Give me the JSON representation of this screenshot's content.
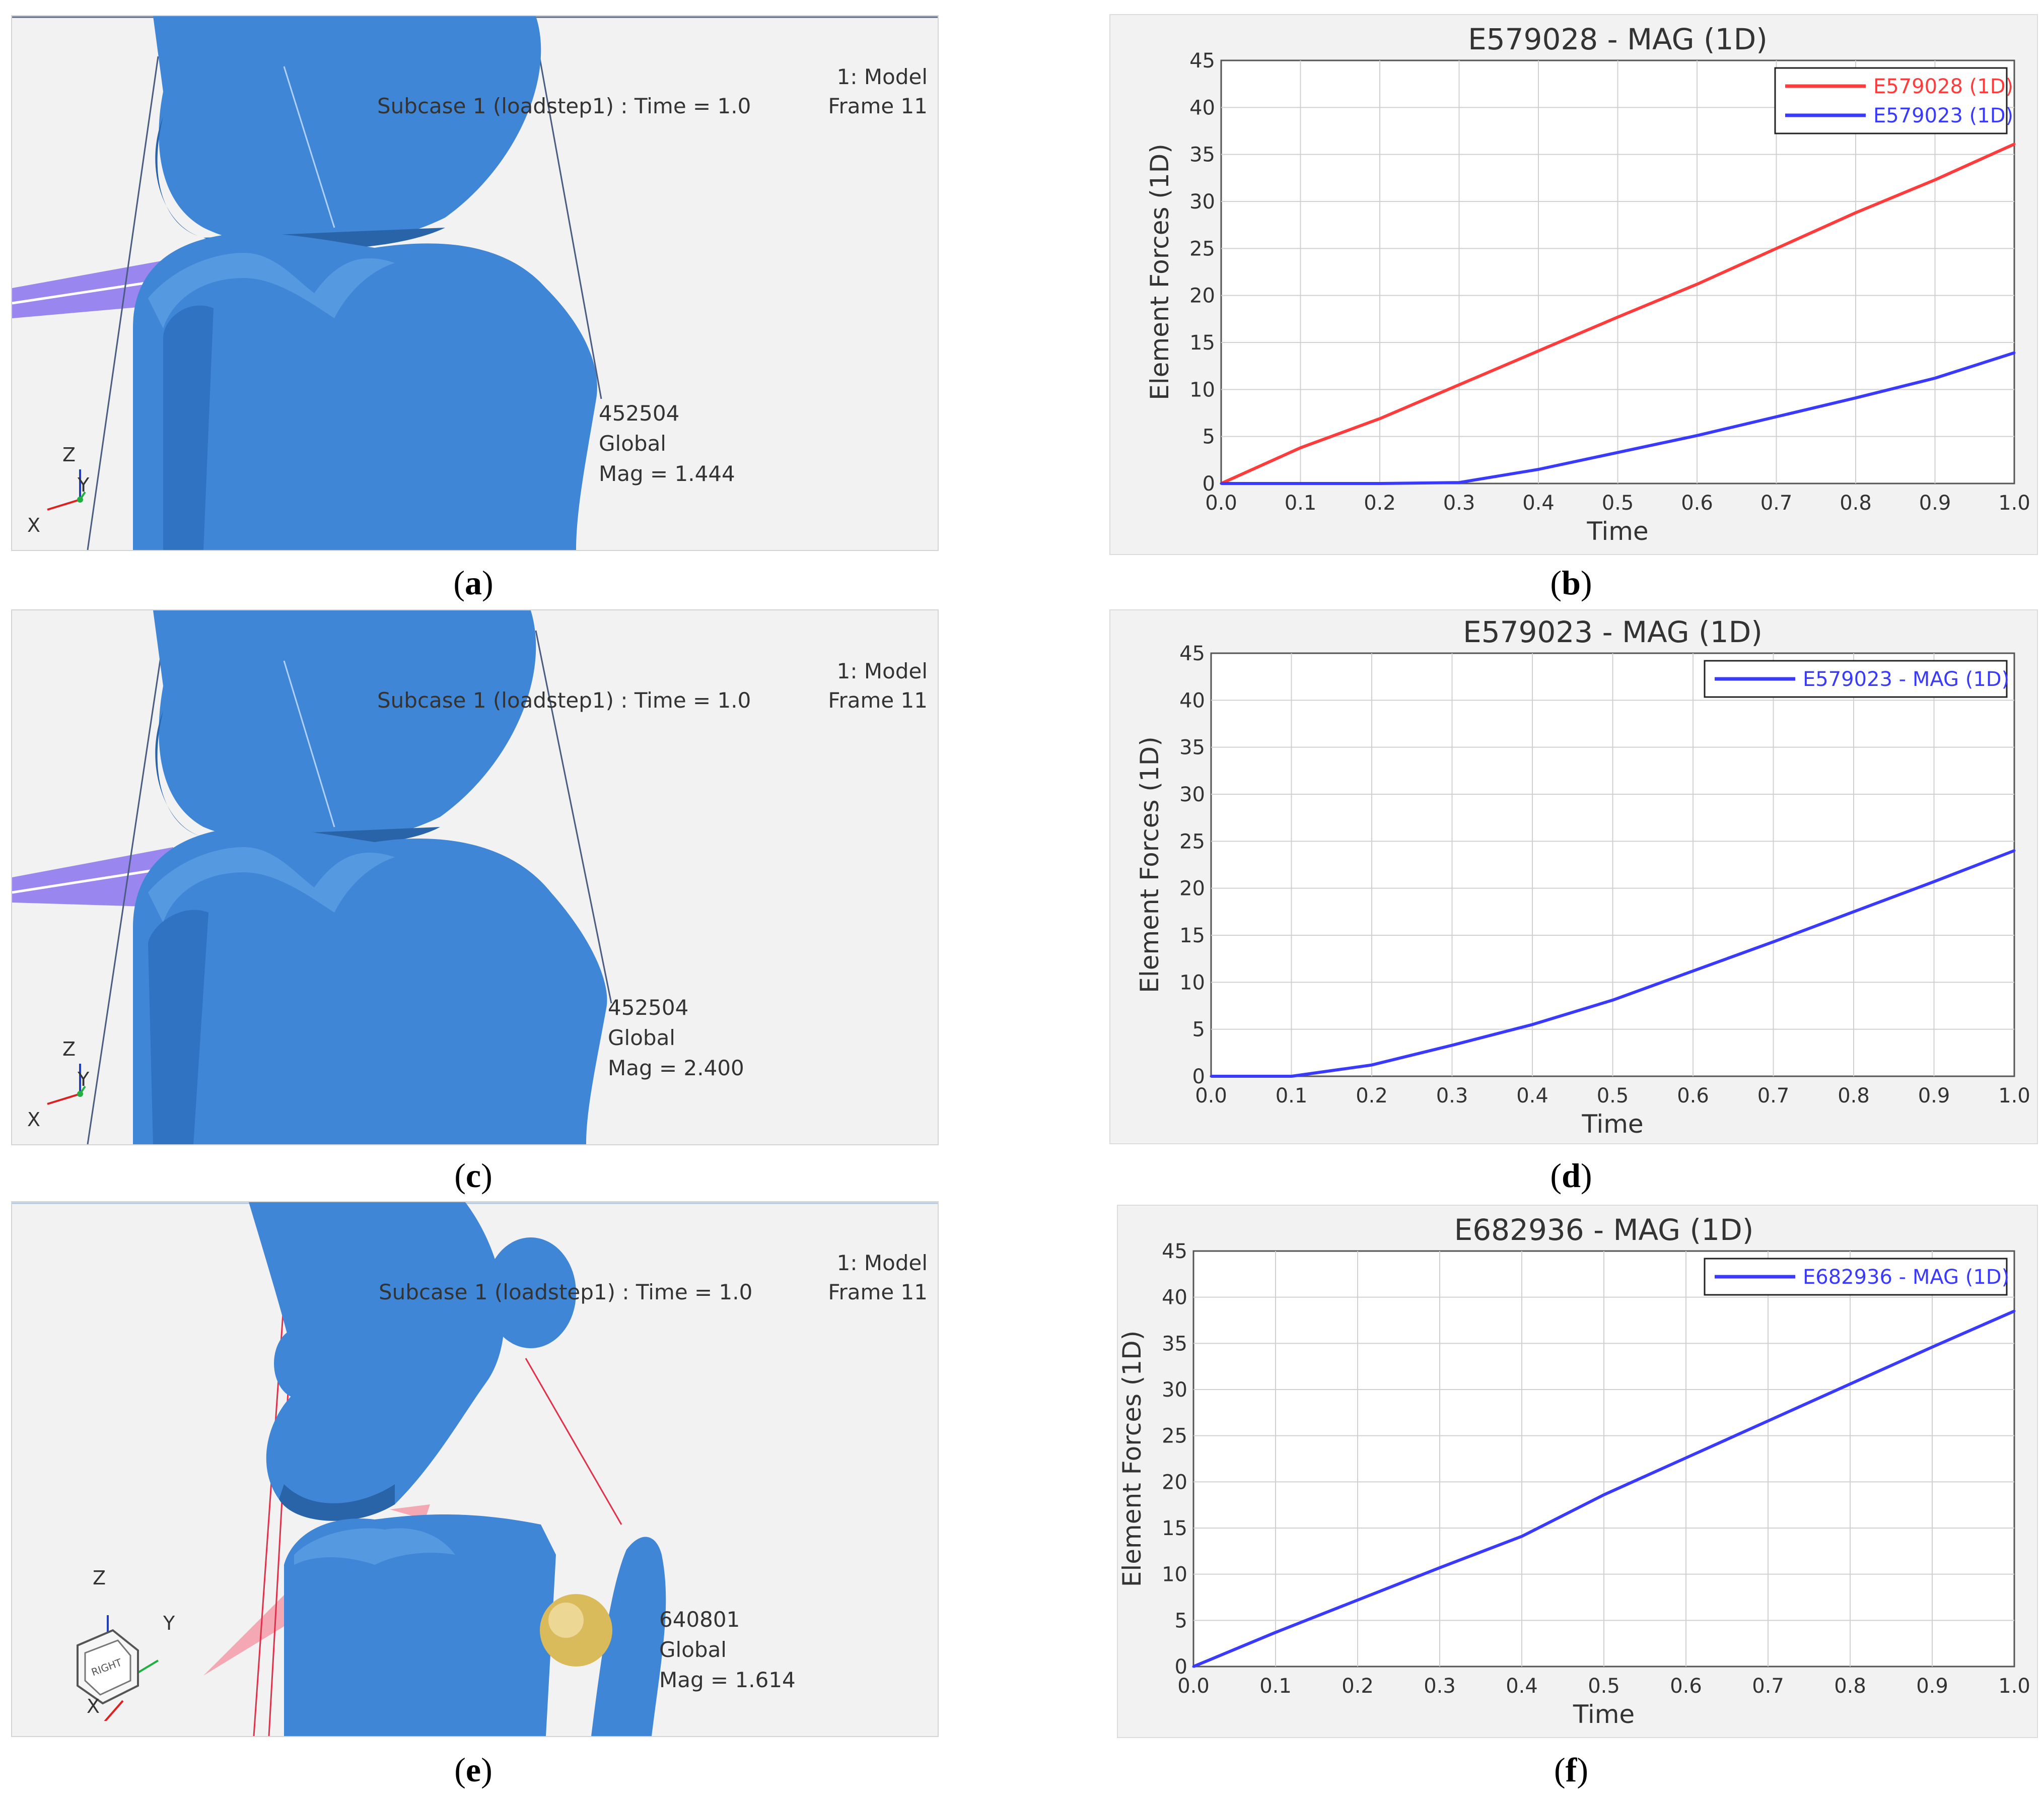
{
  "panels": {
    "a": {
      "caption_label": "a",
      "model_label": "1: Model",
      "frame_label": "Frame 11",
      "subcase_label": "Subcase 1 (loadstep1) : Time = 1.0",
      "node_id": "452504",
      "node_system": "Global",
      "node_mag": "Mag = 1.444",
      "axis_z": "Z",
      "axis_y": "Y",
      "axis_x": "X"
    },
    "c": {
      "caption_label": "c",
      "model_label": "1: Model",
      "frame_label": "Frame 11",
      "subcase_label": "Subcase 1 (loadstep1) : Time = 1.0",
      "node_id": "452504",
      "node_system": "Global",
      "node_mag": "Mag = 2.400",
      "axis_z": "Z",
      "axis_y": "Y",
      "axis_x": "X"
    },
    "e": {
      "caption_label": "e",
      "model_label": "1: Model",
      "frame_label": "Frame 11",
      "subcase_label": "Subcase 1 (loadstep1) : Time = 1.0",
      "node_id": "640801",
      "node_system": "Global",
      "node_mag": "Mag = 1.614",
      "axis_z": "Z",
      "axis_y": "Y",
      "axis_x": "X",
      "cube_face_label": "RIGHT"
    }
  },
  "colors": {
    "bone": "#3f86d6",
    "bone_dark": "#2a64a8",
    "ligament_purple": "#9a86ef",
    "ligament_pink": "#f4a8b4",
    "sphere": "#d9bb5c",
    "red_series": "#ff3b3b",
    "blue_series": "#3a3aff"
  },
  "chart_data": [
    {
      "caption_label": "b",
      "type": "line",
      "title": "E579028 - MAG (1D)",
      "xlabel": "Time",
      "ylabel": "Element Forces (1D)",
      "xlim": [
        0,
        1
      ],
      "ylim": [
        0,
        45
      ],
      "xticks": [
        "0.0",
        "0.1",
        "0.2",
        "0.3",
        "0.4",
        "0.5",
        "0.6",
        "0.7",
        "0.8",
        "0.9",
        "1.0"
      ],
      "yticks": [
        "0",
        "5",
        "10",
        "15",
        "20",
        "25",
        "30",
        "35",
        "40",
        "45"
      ],
      "grid": true,
      "legend": "top-right",
      "series": [
        {
          "name": "E579028 (1D)",
          "color": "#ff3b3b",
          "x": [
            0.0,
            0.1,
            0.2,
            0.3,
            0.4,
            0.5,
            0.6,
            0.7,
            0.8,
            0.9,
            1.0
          ],
          "y": [
            0.0,
            3.8,
            6.9,
            10.5,
            14.1,
            17.7,
            21.2,
            25.0,
            28.8,
            32.3,
            36.1
          ]
        },
        {
          "name": "E579023 (1D)",
          "color": "#3a3aff",
          "x": [
            0.0,
            0.1,
            0.2,
            0.3,
            0.4,
            0.5,
            0.6,
            0.7,
            0.8,
            0.9,
            1.0
          ],
          "y": [
            0.0,
            0.0,
            0.0,
            0.1,
            1.5,
            3.3,
            5.1,
            7.1,
            9.1,
            11.2,
            13.9
          ]
        }
      ]
    },
    {
      "caption_label": "d",
      "type": "line",
      "title": "E579023 - MAG (1D)",
      "xlabel": "Time",
      "ylabel": "Element Forces (1D)",
      "xlim": [
        0,
        1
      ],
      "ylim": [
        0,
        45
      ],
      "xticks": [
        "0.0",
        "0.1",
        "0.2",
        "0.3",
        "0.4",
        "0.5",
        "0.6",
        "0.7",
        "0.8",
        "0.9",
        "1.0"
      ],
      "yticks": [
        "0",
        "5",
        "10",
        "15",
        "20",
        "25",
        "30",
        "35",
        "40",
        "45"
      ],
      "grid": true,
      "legend": "top-right",
      "series": [
        {
          "name": "E579023 - MAG (1D)",
          "color": "#3a3aff",
          "x": [
            0.0,
            0.1,
            0.2,
            0.3,
            0.4,
            0.5,
            0.6,
            0.7,
            0.8,
            0.9,
            1.0
          ],
          "y": [
            0.0,
            0.0,
            1.2,
            3.3,
            5.5,
            8.1,
            11.2,
            14.3,
            17.5,
            20.7,
            24.0
          ]
        }
      ]
    },
    {
      "caption_label": "f",
      "type": "line",
      "title": "E682936 - MAG (1D)",
      "xlabel": "Time",
      "ylabel": "Element Forces (1D)",
      "xlim": [
        0,
        1
      ],
      "ylim": [
        0,
        45
      ],
      "xticks": [
        "0.0",
        "0.1",
        "0.2",
        "0.3",
        "0.4",
        "0.5",
        "0.6",
        "0.7",
        "0.8",
        "0.9",
        "1.0"
      ],
      "yticks": [
        "0",
        "5",
        "10",
        "15",
        "20",
        "25",
        "30",
        "35",
        "40",
        "45"
      ],
      "grid": true,
      "legend": "top-right",
      "series": [
        {
          "name": "E682936 - MAG (1D)",
          "color": "#3a3aff",
          "x": [
            0.0,
            0.1,
            0.2,
            0.3,
            0.4,
            0.5,
            0.6,
            0.7,
            0.8,
            0.9,
            1.0
          ],
          "y": [
            0.0,
            3.7,
            7.2,
            10.7,
            14.1,
            18.6,
            22.6,
            26.6,
            30.6,
            34.6,
            38.5
          ]
        }
      ]
    }
  ]
}
